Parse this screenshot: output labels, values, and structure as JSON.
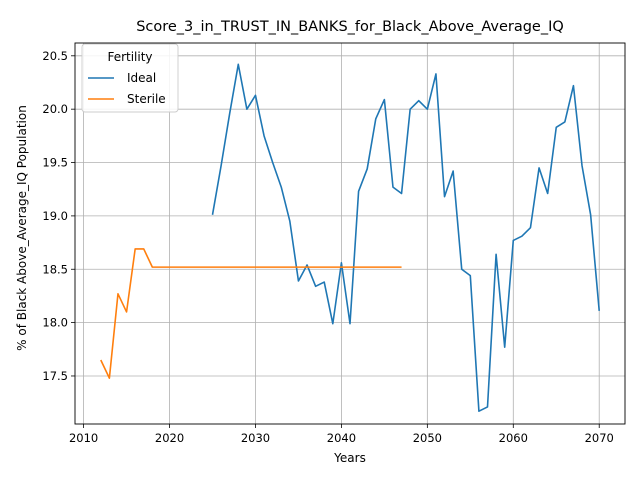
{
  "chart_data": {
    "type": "line",
    "title": "Score_3_in_TRUST_IN_BANKS_for_Black_Above_Average_IQ",
    "xlabel": "Years",
    "ylabel": "% of Black Above_Average_IQ Population",
    "xlim": [
      2009,
      2073
    ],
    "ylim": [
      17.05,
      20.62
    ],
    "xticks": [
      2010,
      2020,
      2030,
      2040,
      2050,
      2060,
      2070
    ],
    "yticks": [
      17.5,
      18.0,
      18.5,
      19.0,
      19.5,
      20.0,
      20.5
    ],
    "grid": true,
    "legend": {
      "title": "Fertility",
      "placement": "top-left"
    },
    "series": [
      {
        "name": "Ideal",
        "color": "#1f77b4",
        "x": [
          2025,
          2026,
          2027,
          2028,
          2029,
          2030,
          2031,
          2032,
          2033,
          2034,
          2035,
          2036,
          2037,
          2038,
          2039,
          2040,
          2041,
          2042,
          2043,
          2044,
          2045,
          2046,
          2047,
          2048,
          2049,
          2050,
          2051,
          2052,
          2053,
          2054,
          2055,
          2056,
          2057,
          2058,
          2059,
          2060,
          2061,
          2062,
          2063,
          2064,
          2065,
          2066,
          2067,
          2068,
          2069,
          2070
        ],
        "y": [
          19.01,
          19.47,
          19.96,
          20.42,
          20.0,
          20.13,
          19.75,
          19.5,
          19.27,
          18.95,
          18.39,
          18.54,
          18.34,
          18.38,
          17.99,
          18.56,
          17.99,
          19.23,
          19.44,
          19.91,
          20.09,
          19.27,
          19.21,
          20.0,
          20.08,
          20.0,
          20.33,
          19.18,
          19.42,
          18.5,
          18.44,
          17.17,
          17.21,
          18.64,
          17.77,
          18.77,
          18.81,
          18.89,
          19.45,
          19.21,
          19.83,
          19.88,
          20.22,
          19.47,
          19.01,
          18.11
        ]
      },
      {
        "name": "Sterile",
        "color": "#ff7f0e",
        "x": [
          2012,
          2013,
          2014,
          2015,
          2016,
          2017,
          2018,
          2019,
          2020,
          2021,
          2022,
          2023,
          2024,
          2025,
          2026,
          2027,
          2028,
          2029,
          2030,
          2031,
          2032,
          2033,
          2034,
          2035,
          2036,
          2037,
          2038,
          2039,
          2040,
          2041,
          2042,
          2043,
          2044,
          2045,
          2046,
          2047
        ],
        "y": [
          17.65,
          17.48,
          18.27,
          18.1,
          18.69,
          18.69,
          18.52,
          18.52,
          18.52,
          18.52,
          18.52,
          18.52,
          18.52,
          18.52,
          18.52,
          18.52,
          18.52,
          18.52,
          18.52,
          18.52,
          18.52,
          18.52,
          18.52,
          18.52,
          18.52,
          18.52,
          18.52,
          18.52,
          18.52,
          18.52,
          18.52,
          18.52,
          18.52,
          18.52,
          18.52,
          18.52
        ]
      }
    ]
  }
}
